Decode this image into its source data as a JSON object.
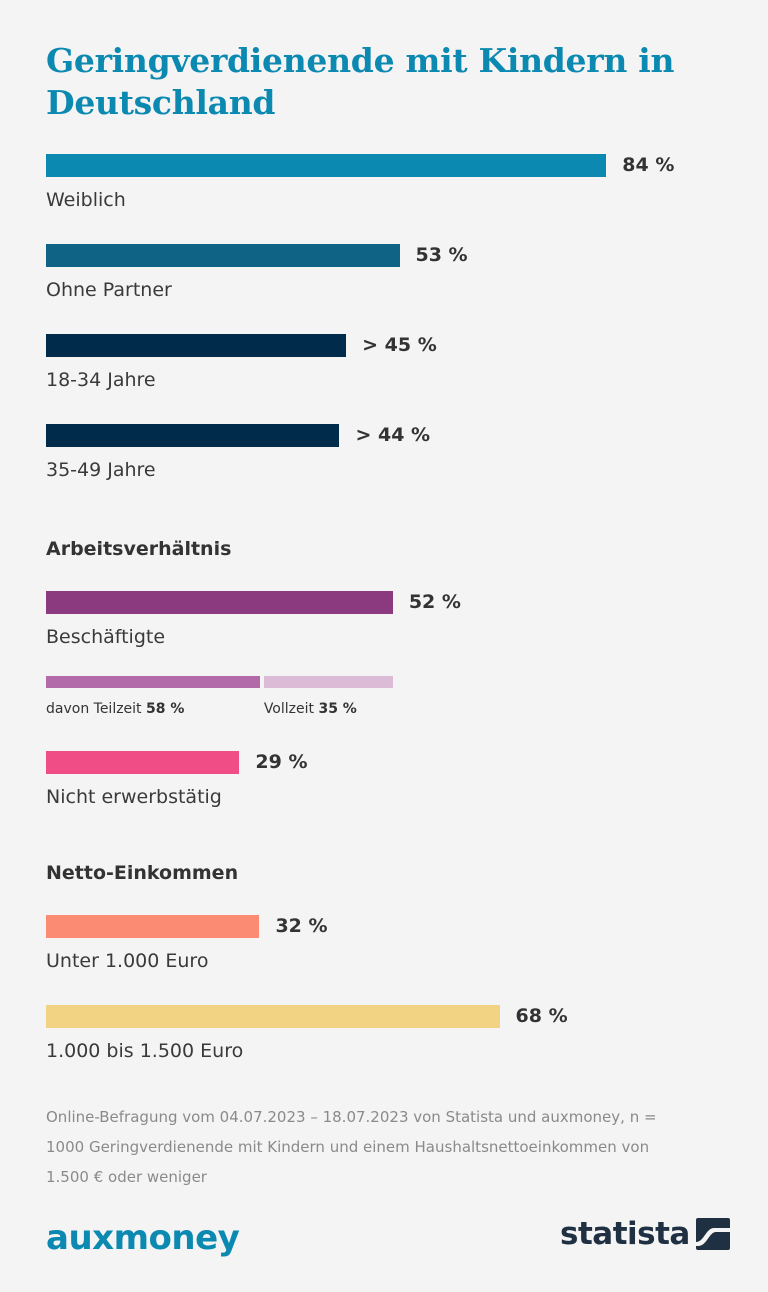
{
  "title": "Geringverdienende mit Kindern in Deutschland",
  "chart_data": {
    "type": "bar",
    "title": "Geringverdienende mit Kindern in Deutschland",
    "unit": "%",
    "xlim": [
      0,
      100
    ],
    "groups": [
      {
        "heading": "",
        "bars": [
          {
            "category": "Weiblich",
            "value": 84,
            "value_label": "84 %",
            "color": "#0b89b1"
          },
          {
            "category": "Ohne Partner",
            "value": 53,
            "value_label": "53 %",
            "color": "#0f6485"
          },
          {
            "category": "18-34 Jahre",
            "value": 45,
            "value_label": "> 45 %",
            "color": "#002b4b"
          },
          {
            "category": "35-49 Jahre",
            "value": 44,
            "value_label": "> 44 %",
            "color": "#002b4b"
          }
        ]
      },
      {
        "heading": "Arbeitsverhältnis",
        "bars": [
          {
            "category": "Beschäftigte",
            "value": 52,
            "value_label": "52 %",
            "color": "#8b3a80"
          },
          {
            "category": "Nicht erwerbstätig",
            "value": 29,
            "value_label": "29 %",
            "color": "#f04d86"
          }
        ],
        "breakdown": {
          "parent": "Beschäftigte",
          "segments": [
            {
              "label": "davon Teilzeit",
              "value": 58,
              "value_label": "58 %",
              "color": "#b26ba8"
            },
            {
              "label": "Vollzeit",
              "value": 35,
              "value_label": "35 %",
              "color": "#dbbbd5"
            }
          ]
        }
      },
      {
        "heading": "Netto-Einkommen",
        "bars": [
          {
            "category": "Unter 1.000 Euro",
            "value": 32,
            "value_label": "32 %",
            "color": "#fb8b72"
          },
          {
            "category": "1.000 bis 1.500 Euro",
            "value": 68,
            "value_label": "68 %",
            "color": "#f2d384"
          }
        ]
      }
    ]
  },
  "footnote": "Online-Befragung vom 04.07.2023 – 18.07.2023 von Statista und auxmoney, n = 1000 Geringverdienende mit Kindern und einem Haushaltsnettoeinkommen von 1.500 € oder weniger",
  "logos": {
    "left": "auxmoney",
    "right": "statista",
    "left_color": "#0b89b1",
    "right_color": "#1f3042"
  }
}
